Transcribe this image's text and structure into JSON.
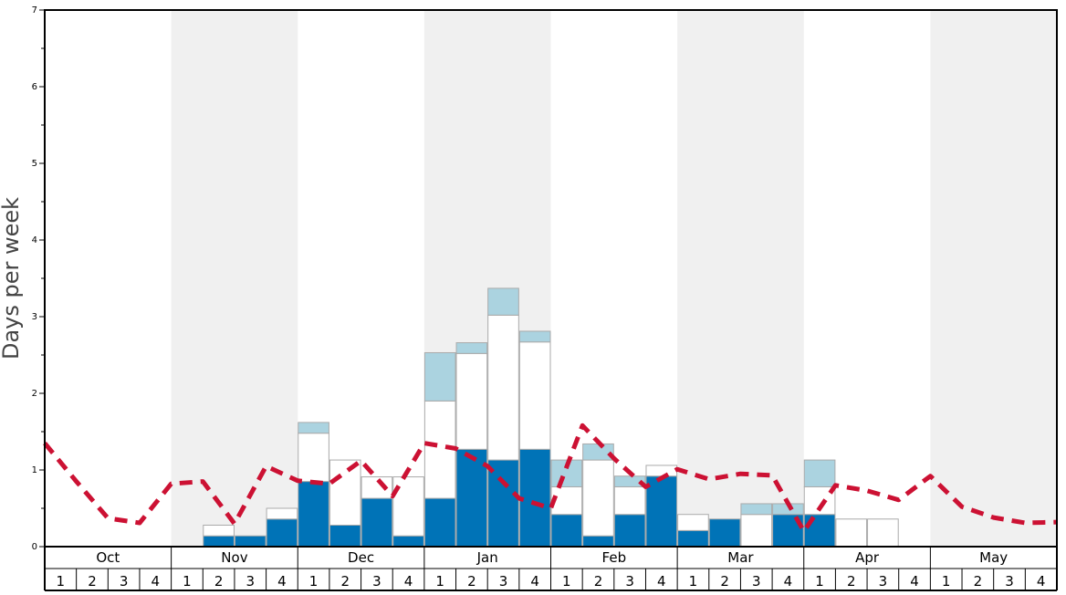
{
  "chart_data": {
    "type": "bar",
    "ylabel": "Days per week",
    "ylim": [
      0,
      7
    ],
    "y_ticks": [
      0,
      1,
      2,
      3,
      4,
      5,
      6,
      7
    ],
    "months": [
      "Oct",
      "Nov",
      "Dec",
      "Jan",
      "Feb",
      "Mar",
      "Apr",
      "May"
    ],
    "weeks": [
      "1",
      "2",
      "3",
      "4"
    ],
    "shaded_months": [
      "Nov",
      "Jan",
      "Mar",
      "May"
    ],
    "colors": {
      "dark": "#0073b7",
      "white": "#ffffff",
      "light": "#abd3e0",
      "line": "#cc1133",
      "shade": "#f0f0f0",
      "bar_border": "#aaaaaa"
    },
    "bars": [
      {
        "month": "Nov",
        "week": 2,
        "dark": 0.14,
        "white": 0.14,
        "light": 0
      },
      {
        "month": "Nov",
        "week": 3,
        "dark": 0.14,
        "white": 0,
        "light": 0
      },
      {
        "month": "Nov",
        "week": 4,
        "dark": 0.36,
        "white": 0.14,
        "light": 0
      },
      {
        "month": "Dec",
        "week": 1,
        "dark": 0.85,
        "white": 0.63,
        "light": 0.14
      },
      {
        "month": "Dec",
        "week": 2,
        "dark": 0.28,
        "white": 0.85,
        "light": 0
      },
      {
        "month": "Dec",
        "week": 3,
        "dark": 0.63,
        "white": 0.28,
        "light": 0
      },
      {
        "month": "Dec",
        "week": 4,
        "dark": 0.14,
        "white": 0.77,
        "light": 0
      },
      {
        "month": "Jan",
        "week": 1,
        "dark": 0.63,
        "white": 1.27,
        "light": 0.63
      },
      {
        "month": "Jan",
        "week": 2,
        "dark": 1.27,
        "white": 1.25,
        "light": 0.14
      },
      {
        "month": "Jan",
        "week": 3,
        "dark": 1.13,
        "white": 1.89,
        "light": 0.35
      },
      {
        "month": "Jan",
        "week": 4,
        "dark": 1.27,
        "white": 1.4,
        "light": 0.14
      },
      {
        "month": "Feb",
        "week": 1,
        "dark": 0.42,
        "white": 0.36,
        "light": 0.35
      },
      {
        "month": "Feb",
        "week": 2,
        "dark": 0.14,
        "white": 0.99,
        "light": 0.21
      },
      {
        "month": "Feb",
        "week": 3,
        "dark": 0.42,
        "white": 0.36,
        "light": 0.14
      },
      {
        "month": "Feb",
        "week": 4,
        "dark": 0.92,
        "white": 0.14,
        "light": 0
      },
      {
        "month": "Mar",
        "week": 1,
        "dark": 0.21,
        "white": 0.21,
        "light": 0
      },
      {
        "month": "Mar",
        "week": 2,
        "dark": 0.36,
        "white": 0,
        "light": 0
      },
      {
        "month": "Mar",
        "week": 3,
        "dark": 0,
        "white": 0.42,
        "light": 0.14
      },
      {
        "month": "Mar",
        "week": 4,
        "dark": 0.42,
        "white": 0,
        "light": 0.14
      },
      {
        "month": "Apr",
        "week": 1,
        "dark": 0.42,
        "white": 0.36,
        "light": 0.35
      },
      {
        "month": "Apr",
        "week": 2,
        "dark": 0,
        "white": 0.36,
        "light": 0
      },
      {
        "month": "Apr",
        "week": 3,
        "dark": 0,
        "white": 0.36,
        "light": 0
      }
    ],
    "line": [
      1.35,
      0.85,
      0.37,
      0.31,
      0.82,
      0.85,
      0.3,
      1.05,
      0.86,
      0.82,
      1.12,
      0.66,
      1.35,
      1.28,
      1.05,
      0.63,
      0.5,
      1.58,
      1.15,
      0.78,
      1.01,
      0.88,
      0.95,
      0.93,
      0.2,
      0.8,
      0.73,
      0.61,
      0.92,
      0.52,
      0.38,
      0.31,
      0.32
    ]
  }
}
